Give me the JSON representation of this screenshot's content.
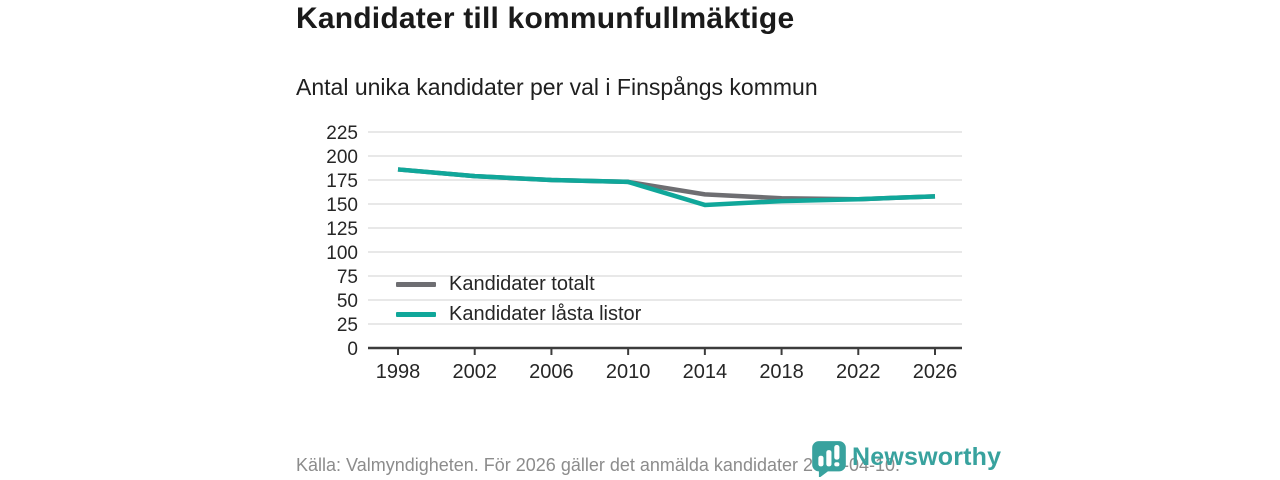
{
  "header": {
    "title": "Kandidater till kommunfullmäktige",
    "subtitle": "Antal unika kandidater per val i Finspångs kommun"
  },
  "chart_data": {
    "type": "line",
    "x": [
      1998,
      2002,
      2006,
      2010,
      2014,
      2018,
      2022,
      2026
    ],
    "series": [
      {
        "name": "Kandidater totalt",
        "color": "#6e6e72",
        "values": [
          186,
          179,
          175,
          173,
          160,
          156,
          155,
          158
        ]
      },
      {
        "name": "Kandidater låsta listor",
        "color": "#10a79a",
        "values": [
          186,
          179,
          175,
          173,
          149,
          153,
          155,
          158
        ]
      }
    ],
    "title": "Kandidater till kommunfullmäktige",
    "subtitle": "Antal unika kandidater per val i Finspångs kommun",
    "xlabel": "",
    "ylabel": "",
    "ylim": [
      0,
      225
    ],
    "yticks": [
      0,
      25,
      50,
      75,
      100,
      125,
      150,
      175,
      200,
      225
    ],
    "grid": true,
    "legend_position": "inside-left-bottom"
  },
  "footer": {
    "source": "Källa: Valmyndigheten. För 2026 gäller det anmälda kandidater 2026-04-10.",
    "brand": "Newsworthy"
  },
  "colors": {
    "accent_teal": "#10a79a",
    "line_gray": "#6e6e72",
    "grid": "#e8e8e8",
    "axis": "#3c3c3c",
    "brand_teal": "#38a29e",
    "text_dark": "#1a1a1a",
    "text_muted": "#8c8c8c"
  }
}
